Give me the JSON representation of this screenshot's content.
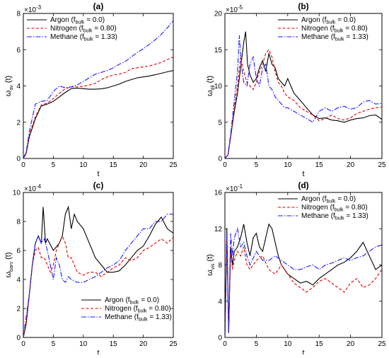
{
  "chart_data": [
    {
      "type": "line",
      "title": "(a)",
      "xlabel": "t",
      "ylabel_main": "ω",
      "ylabel_sub": "av",
      "ylabel_suffix": " (t)",
      "y_multiplier": "×10",
      "y_exponent": "-3",
      "xlim": [
        0,
        25
      ],
      "ylim": [
        0,
        8
      ],
      "xticks": [
        0,
        5,
        10,
        15,
        20,
        25
      ],
      "yticks": [
        0,
        2,
        4,
        6,
        8
      ],
      "legend_position": "top-left",
      "series": [
        {
          "name": "Argon",
          "fbulk": "0.0",
          "color": "#000000",
          "dash": "solid",
          "x": [
            0,
            0.5,
            1,
            2,
            3,
            4,
            5,
            6,
            7,
            8,
            9,
            10,
            11,
            12,
            13,
            14,
            15,
            16,
            17,
            18,
            19,
            20,
            21,
            22,
            23,
            24,
            25
          ],
          "y": [
            0,
            0.3,
            1.2,
            2.2,
            2.9,
            3.0,
            3.15,
            3.4,
            3.65,
            3.85,
            3.88,
            3.85,
            3.82,
            3.82,
            3.84,
            3.9,
            4.0,
            4.1,
            4.25,
            4.35,
            4.45,
            4.5,
            4.55,
            4.62,
            4.7,
            4.78,
            4.85
          ]
        },
        {
          "name": "Nitrogen",
          "fbulk": "0.80",
          "color": "#e00000",
          "dash": "dashed",
          "x": [
            0,
            0.5,
            1,
            2,
            3,
            4,
            5,
            6,
            7,
            8,
            9,
            10,
            11,
            12,
            13,
            14,
            15,
            16,
            17,
            18,
            19,
            20,
            21,
            22,
            23,
            24,
            25
          ],
          "y": [
            0,
            0.3,
            1.3,
            2.3,
            2.95,
            3.05,
            3.3,
            3.6,
            3.85,
            3.95,
            3.95,
            3.98,
            4.05,
            4.15,
            4.35,
            4.5,
            4.6,
            4.65,
            4.75,
            4.95,
            5.0,
            5.05,
            5.1,
            5.2,
            5.3,
            5.45,
            5.6
          ]
        },
        {
          "name": "Methane",
          "fbulk": "1.33",
          "color": "#1a1aff",
          "dash": "dashdot",
          "x": [
            0,
            0.5,
            1,
            2,
            3,
            4,
            5,
            6,
            7,
            8,
            9,
            10,
            11,
            12,
            13,
            14,
            15,
            16,
            17,
            18,
            19,
            20,
            21,
            22,
            23,
            24,
            25
          ],
          "y": [
            0,
            0.4,
            1.5,
            3.0,
            3.15,
            3.2,
            3.7,
            4.0,
            3.9,
            3.95,
            4.05,
            4.25,
            4.45,
            4.65,
            4.75,
            4.85,
            5.0,
            5.2,
            5.35,
            5.6,
            5.85,
            6.05,
            6.3,
            6.55,
            6.85,
            7.2,
            7.6
          ]
        }
      ]
    },
    {
      "type": "line",
      "title": "(b)",
      "xlabel": "t",
      "ylabel_main": "ω",
      "ylabel_sub": "dil",
      "ylabel_suffix": " (t)",
      "y_multiplier": "×10",
      "y_exponent": "-5",
      "xlim": [
        0,
        25
      ],
      "ylim": [
        0,
        20
      ],
      "xticks": [
        0,
        5,
        10,
        15,
        20,
        25
      ],
      "yticks": [
        0,
        5,
        10,
        15,
        20
      ],
      "legend_position": "top-right",
      "series": [
        {
          "name": "Argon",
          "fbulk": "0.0",
          "color": "#000000",
          "dash": "solid",
          "x": [
            0,
            0.5,
            1,
            1.5,
            2,
            2.5,
            3,
            3.3,
            3.6,
            4,
            4.5,
            5,
            5.5,
            6,
            6.5,
            7,
            7.5,
            8,
            8.5,
            9,
            9.5,
            10,
            10.5,
            11,
            12,
            13,
            14,
            15,
            16,
            17,
            18,
            19,
            20,
            21,
            22,
            23,
            24,
            25
          ],
          "y": [
            0,
            0.5,
            3.5,
            6.5,
            9.0,
            12.5,
            16.0,
            17.5,
            13.0,
            11.5,
            10.5,
            11.0,
            12.5,
            13.5,
            12.0,
            14.5,
            13.0,
            12.5,
            11.0,
            10.5,
            10.0,
            11.0,
            10.0,
            9.0,
            8.0,
            7.0,
            6.0,
            5.5,
            5.6,
            5.3,
            5.2,
            5.0,
            5.3,
            5.5,
            5.6,
            5.9,
            6.0,
            5.4
          ]
        },
        {
          "name": "Nitrogen",
          "fbulk": "0.80",
          "color": "#e00000",
          "dash": "dashed",
          "x": [
            0,
            0.5,
            1,
            1.5,
            2,
            2.5,
            3,
            3.5,
            4,
            4.5,
            5,
            5.5,
            6,
            6.5,
            7,
            7.5,
            8,
            8.5,
            9,
            9.5,
            10,
            11,
            12,
            13,
            14,
            15,
            16,
            17,
            18,
            19,
            20,
            21,
            22,
            23,
            24,
            25
          ],
          "y": [
            0,
            0.5,
            3.5,
            7.0,
            10.0,
            14.0,
            12.0,
            10.5,
            10.0,
            9.5,
            10.5,
            12.0,
            13.0,
            14.5,
            15.0,
            14.0,
            12.0,
            10.5,
            10.0,
            9.0,
            8.5,
            8.0,
            7.0,
            6.5,
            6.0,
            5.2,
            5.5,
            6.0,
            5.5,
            5.3,
            5.6,
            6.2,
            6.5,
            6.8,
            7.0,
            7.1
          ]
        },
        {
          "name": "Methane",
          "fbulk": "1.33",
          "color": "#1a1aff",
          "dash": "dashdot",
          "x": [
            0,
            0.5,
            1,
            1.5,
            2,
            2.3,
            2.6,
            3,
            3.5,
            4,
            4.5,
            5,
            5.5,
            6,
            6.5,
            7,
            7.5,
            8,
            8.5,
            9,
            9.5,
            10,
            11,
            12,
            13,
            14,
            15,
            16,
            17,
            18,
            19,
            20,
            21,
            22,
            23,
            24,
            25
          ],
          "y": [
            0,
            0.5,
            4.0,
            8.0,
            12.0,
            17.0,
            13.0,
            10.5,
            10.0,
            13.0,
            14.0,
            11.0,
            10.0,
            12.5,
            13.0,
            10.0,
            9.5,
            8.5,
            8.0,
            7.5,
            7.0,
            7.0,
            6.5,
            6.0,
            5.5,
            5.0,
            6.5,
            7.0,
            6.5,
            7.0,
            7.2,
            6.8,
            7.0,
            7.8,
            8.0,
            7.5,
            7.6
          ]
        }
      ]
    },
    {
      "type": "line",
      "title": "(c)",
      "xlabel": "t",
      "ylabel_main": "ω",
      "ylabel_sub": "baro",
      "ylabel_suffix": " (t)",
      "y_multiplier": "×10",
      "y_exponent": "-4",
      "xlim": [
        0,
        25
      ],
      "ylim": [
        0,
        10
      ],
      "xticks": [
        0,
        5,
        10,
        15,
        20,
        25
      ],
      "yticks": [
        0,
        2,
        4,
        6,
        8,
        10
      ],
      "legend_position": "bottom-right",
      "series": [
        {
          "name": "Argon",
          "fbulk": "0.0",
          "color": "#000000",
          "dash": "solid",
          "x": [
            0,
            0.5,
            1,
            1.5,
            2,
            2.5,
            3,
            3.3,
            3.7,
            4,
            5,
            6,
            6.5,
            7,
            7.5,
            8,
            8.5,
            9,
            10,
            11,
            12,
            13,
            14,
            15,
            16,
            17,
            18,
            19,
            20,
            21,
            22,
            23,
            24,
            25
          ],
          "y": [
            0,
            1.0,
            3.0,
            5.0,
            6.5,
            7.0,
            6.5,
            9.0,
            6.5,
            6.8,
            6.0,
            6.5,
            7.0,
            8.5,
            9.0,
            7.5,
            8.5,
            8.0,
            7.5,
            6.5,
            5.5,
            5.0,
            4.5,
            4.5,
            4.6,
            5.0,
            5.5,
            6.0,
            6.3,
            7.0,
            7.8,
            8.3,
            7.5,
            7.2
          ]
        },
        {
          "name": "Nitrogen",
          "fbulk": "0.80",
          "color": "#e00000",
          "dash": "dashed",
          "x": [
            0,
            0.5,
            1,
            1.5,
            2,
            2.5,
            3,
            3.5,
            4,
            4.5,
            5,
            5.5,
            6,
            6.5,
            7,
            7.5,
            8,
            9,
            10,
            11,
            12,
            13,
            14,
            15,
            16,
            17,
            18,
            19,
            20,
            21,
            22,
            23,
            24,
            25
          ],
          "y": [
            0,
            1.0,
            3.0,
            5.0,
            6.0,
            6.2,
            5.5,
            5.5,
            5.0,
            4.5,
            5.0,
            6.0,
            6.5,
            7.0,
            6.5,
            5.5,
            5.5,
            4.5,
            4.3,
            4.5,
            4.5,
            4.2,
            4.5,
            4.8,
            5.0,
            5.5,
            5.3,
            5.5,
            6.0,
            6.2,
            6.5,
            6.8,
            6.5,
            6.9
          ]
        },
        {
          "name": "Methane",
          "fbulk": "1.33",
          "color": "#1a1aff",
          "dash": "dashdot",
          "x": [
            0,
            0.5,
            1,
            1.5,
            2,
            2.5,
            3,
            3.5,
            4,
            5,
            5.5,
            6,
            6.5,
            7,
            7.5,
            8,
            9,
            10,
            11,
            12,
            13,
            14,
            15,
            16,
            17,
            18,
            19,
            20,
            21,
            22,
            23,
            24,
            25
          ],
          "y": [
            0,
            1.5,
            3.0,
            5.0,
            6.5,
            7.0,
            6.5,
            6.8,
            6.0,
            4.0,
            5.5,
            5.0,
            4.0,
            3.8,
            4.2,
            4.0,
            3.8,
            3.8,
            4.0,
            4.2,
            4.5,
            4.8,
            5.0,
            5.3,
            6.0,
            6.5,
            7.0,
            7.5,
            7.5,
            8.0,
            8.0,
            8.5,
            8.5
          ]
        }
      ]
    },
    {
      "type": "line",
      "title": "(d)",
      "xlabel": "t",
      "ylabel_main": "ω",
      "ylabel_sub": "vis",
      "ylabel_suffix": " (t)",
      "y_multiplier": "×10",
      "y_exponent": "-1",
      "xlim": [
        0,
        25
      ],
      "ylim": [
        0,
        16
      ],
      "xticks": [
        0,
        5,
        10,
        15,
        20,
        25
      ],
      "yticks": [
        0,
        4,
        8,
        12,
        16
      ],
      "legend_position": "top-right",
      "series": [
        {
          "name": "Argon",
          "fbulk": "0.0",
          "color": "#000000",
          "dash": "solid",
          "x": [
            0,
            0.3,
            0.6,
            0.9,
            1.2,
            1.5,
            2,
            2.5,
            3,
            3.5,
            4,
            4.5,
            5,
            5.5,
            6,
            6.5,
            7,
            7.5,
            8,
            8.5,
            9,
            10,
            11,
            12,
            13,
            14,
            15,
            16,
            17,
            18,
            19,
            20,
            21,
            22,
            23,
            24,
            25
          ],
          "y": [
            0,
            12.0,
            0.5,
            10.0,
            8.0,
            9.5,
            10.0,
            11.0,
            12.5,
            10.5,
            9.0,
            11.0,
            11.5,
            10.0,
            9.5,
            11.0,
            12.5,
            12.0,
            10.5,
            9.0,
            8.0,
            7.0,
            6.5,
            6.0,
            6.2,
            5.8,
            6.5,
            7.0,
            7.5,
            8.0,
            8.3,
            8.8,
            9.5,
            10.5,
            9.0,
            7.5,
            8.0
          ]
        },
        {
          "name": "Nitrogen",
          "fbulk": "0.80",
          "color": "#e00000",
          "dash": "dashed",
          "x": [
            0,
            0.3,
            0.6,
            0.9,
            1.2,
            1.5,
            2,
            2.5,
            3,
            3.5,
            4,
            5,
            6,
            7,
            8,
            9,
            10,
            11,
            12,
            13,
            14,
            15,
            16,
            17,
            18,
            19,
            20,
            21,
            22,
            23,
            24,
            25
          ],
          "y": [
            0,
            11.0,
            0.5,
            9.5,
            7.5,
            8.5,
            9.5,
            9.0,
            10.0,
            8.0,
            7.5,
            8.5,
            9.0,
            7.5,
            7.0,
            8.0,
            7.0,
            6.0,
            5.5,
            5.0,
            5.5,
            6.2,
            6.5,
            6.0,
            5.5,
            5.0,
            6.0,
            6.5,
            5.5,
            5.8,
            6.5,
            7.5
          ]
        },
        {
          "name": "Methane",
          "fbulk": "1.33",
          "color": "#1a1aff",
          "dash": "dashdot",
          "x": [
            0,
            0.3,
            0.6,
            0.9,
            1.2,
            1.5,
            2,
            2.5,
            3,
            3.5,
            4,
            5,
            6,
            7,
            8,
            9,
            10,
            11,
            12,
            13,
            14,
            15,
            16,
            17,
            18,
            19,
            20,
            21,
            22,
            23,
            24,
            25
          ],
          "y": [
            0,
            11.5,
            0.5,
            11.5,
            9.0,
            11.0,
            12.0,
            10.0,
            10.5,
            9.0,
            8.0,
            9.5,
            8.5,
            8.5,
            9.0,
            8.5,
            8.0,
            7.5,
            7.5,
            7.8,
            8.0,
            7.5,
            8.0,
            8.2,
            8.5,
            8.8,
            8.5,
            8.8,
            9.0,
            9.5,
            10.0,
            10.2
          ]
        }
      ]
    }
  ]
}
